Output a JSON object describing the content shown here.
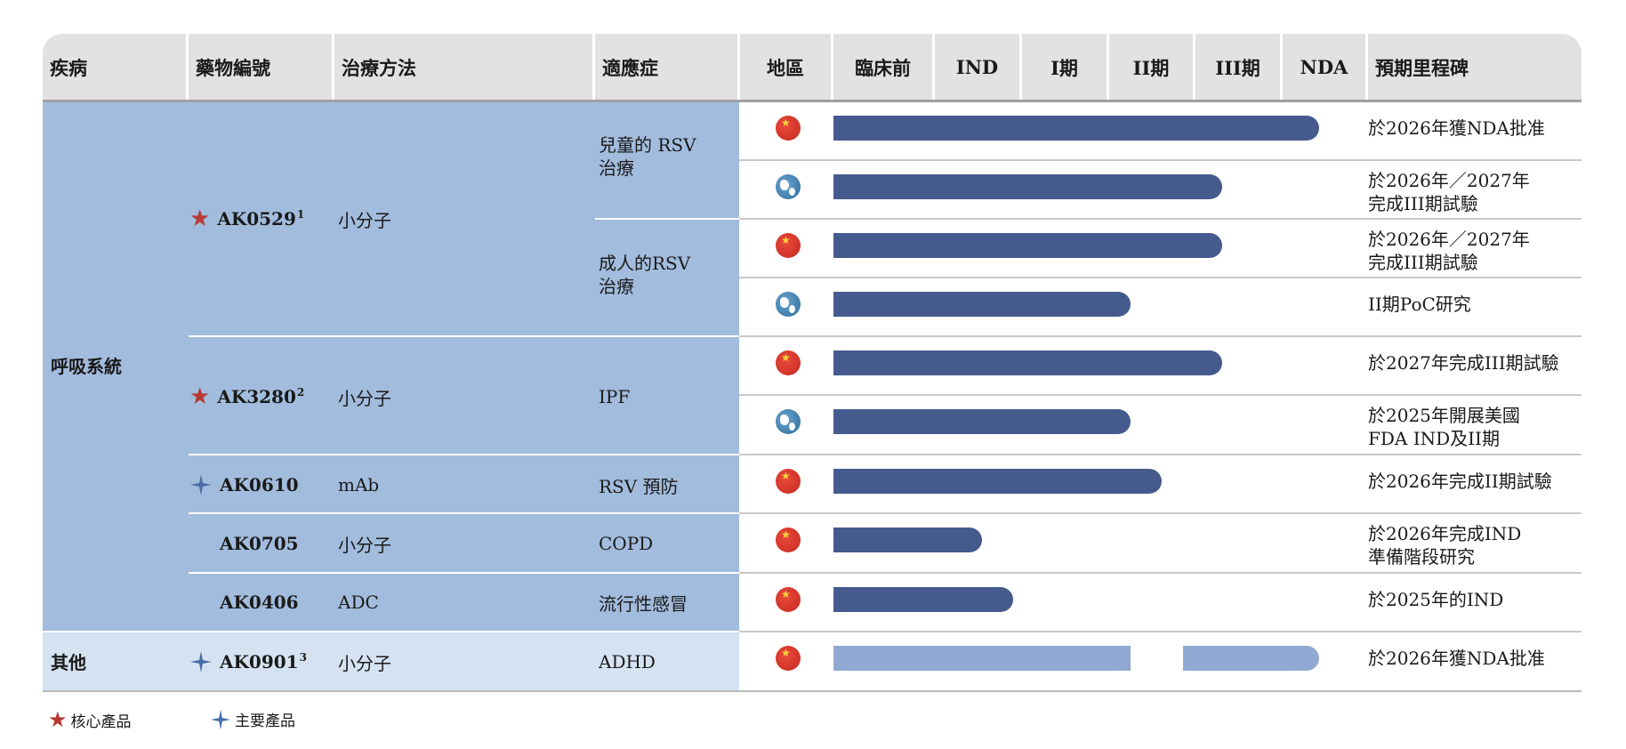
{
  "header": {
    "disease": "疾病",
    "drug_no": "藥物編號",
    "therapy": "治療方法",
    "indication": "適應症",
    "region": "地區",
    "stages": [
      "臨床前",
      "IND",
      "I期",
      "II期",
      "III期",
      "NDA"
    ],
    "milestone": "預期里程碑"
  },
  "disease_groups": {
    "respiratory": "呼吸系統",
    "other": "其他"
  },
  "drugs": [
    {
      "id": "AK0529",
      "sup": "1",
      "badge": "core",
      "therapy": "小分子"
    },
    {
      "id": "AK3280",
      "sup": "2",
      "badge": "core",
      "therapy": "小分子"
    },
    {
      "id": "AK0610",
      "sup": "",
      "badge": "key",
      "therapy": "mAb"
    },
    {
      "id": "AK0705",
      "sup": "",
      "badge": "",
      "therapy": "小分子"
    },
    {
      "id": "AK0406",
      "sup": "",
      "badge": "",
      "therapy": "ADC"
    },
    {
      "id": "AK0901",
      "sup": "3",
      "badge": "key",
      "therapy": "小分子"
    }
  ],
  "indications": {
    "child_rsv": [
      "兒童的 RSV",
      "治療"
    ],
    "adult_rsv": [
      "成人的RSV",
      "治療"
    ],
    "ipf": "IPF",
    "rsv_prev": "RSV 預防",
    "copd": "COPD",
    "flu": "流行性感冒",
    "adhd": "ADHD"
  },
  "chart_data": {
    "type": "bar",
    "title": "",
    "stage_axis": [
      "臨床前",
      "IND",
      "I期",
      "II期",
      "III期",
      "NDA"
    ],
    "rows": [
      {
        "drug": "AK0529",
        "indication": "兒童的 RSV 治療",
        "region": "China",
        "progress_end": 5.55,
        "style": "solid",
        "milestone": [
          "於2026年獲NDA批准"
        ]
      },
      {
        "drug": "AK0529",
        "indication": "兒童的 RSV 治療",
        "region": "Global",
        "progress_end": 4.45,
        "style": "solid",
        "milestone": [
          "於2026年／2027年",
          "完成III期試驗"
        ]
      },
      {
        "drug": "AK0529",
        "indication": "成人的RSV 治療",
        "region": "China",
        "progress_end": 4.45,
        "style": "solid",
        "milestone": [
          "於2026年／2027年",
          "完成III期試驗"
        ]
      },
      {
        "drug": "AK0529",
        "indication": "成人的RSV 治療",
        "region": "Global",
        "progress_end": 3.4,
        "style": "solid",
        "milestone": [
          "II期PoC研究"
        ]
      },
      {
        "drug": "AK3280",
        "indication": "IPF",
        "region": "China",
        "progress_end": 4.45,
        "style": "solid",
        "milestone": [
          "於2027年完成III期試驗"
        ]
      },
      {
        "drug": "AK3280",
        "indication": "IPF",
        "region": "Global",
        "progress_end": 3.4,
        "style": "solid",
        "milestone": [
          "於2025年開展美國",
          "FDA IND及II期"
        ]
      },
      {
        "drug": "AK0610",
        "indication": "RSV 預防",
        "region": "China",
        "progress_end": 3.75,
        "style": "solid",
        "milestone": [
          "於2026年完成II期試驗"
        ]
      },
      {
        "drug": "AK0705",
        "indication": "COPD",
        "region": "China",
        "progress_end": 1.7,
        "style": "solid",
        "milestone": [
          "於2026年完成IND",
          "準備階段研究"
        ]
      },
      {
        "drug": "AK0406",
        "indication": "流行性感冒",
        "region": "China",
        "progress_end": 2.05,
        "style": "solid",
        "milestone": [
          "於2025年的IND"
        ]
      },
      {
        "drug": "AK0901",
        "indication": "ADHD",
        "region": "China",
        "progress_end": 5.55,
        "style": "light-segmented",
        "segments": [
          [
            0,
            3.4
          ],
          [
            4.0,
            5.55
          ]
        ],
        "milestone": [
          "於2026年獲NDA批准"
        ]
      }
    ],
    "colors": {
      "solid": "#455b8e",
      "light": "#91a9d2"
    }
  },
  "legend": {
    "core": "核心產品",
    "key": "主要產品"
  }
}
